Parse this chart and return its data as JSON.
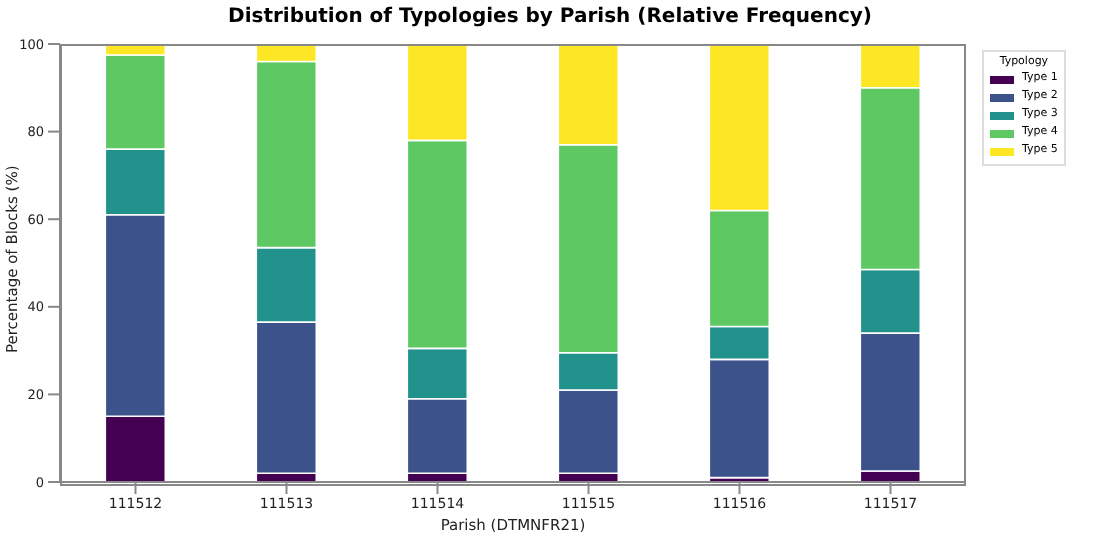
{
  "chart_data": {
    "type": "bar",
    "title": "Distribution of Typologies by Parish (Relative Frequency)",
    "xlabel": "Parish (DTMNFR21)",
    "ylabel": "Percentage of Blocks (%)",
    "legend_title": "Typology",
    "categories": [
      "111512",
      "111513",
      "111514",
      "111515",
      "111516",
      "111517"
    ],
    "stacked": true,
    "ylim": [
      0,
      100
    ],
    "yticks": [
      0,
      20,
      40,
      60,
      80,
      100
    ],
    "grid": false,
    "legend": "top right",
    "series": [
      {
        "name": "Type 1",
        "color": "#440154",
        "values": [
          15,
          2,
          2,
          2,
          1,
          2.5
        ]
      },
      {
        "name": "Type 2",
        "color": "#3b528b",
        "values": [
          46,
          34.5,
          17,
          19,
          27,
          31.5
        ]
      },
      {
        "name": "Type 3",
        "color": "#21918c",
        "values": [
          15,
          17,
          11.5,
          8.5,
          7.5,
          14.5
        ]
      },
      {
        "name": "Type 4",
        "color": "#5ec962",
        "values": [
          21.5,
          42.5,
          47.5,
          47.5,
          26.5,
          41.5
        ]
      },
      {
        "name": "Type 5",
        "color": "#fde725",
        "values": [
          2.5,
          4,
          22,
          23,
          38,
          10
        ]
      }
    ]
  }
}
